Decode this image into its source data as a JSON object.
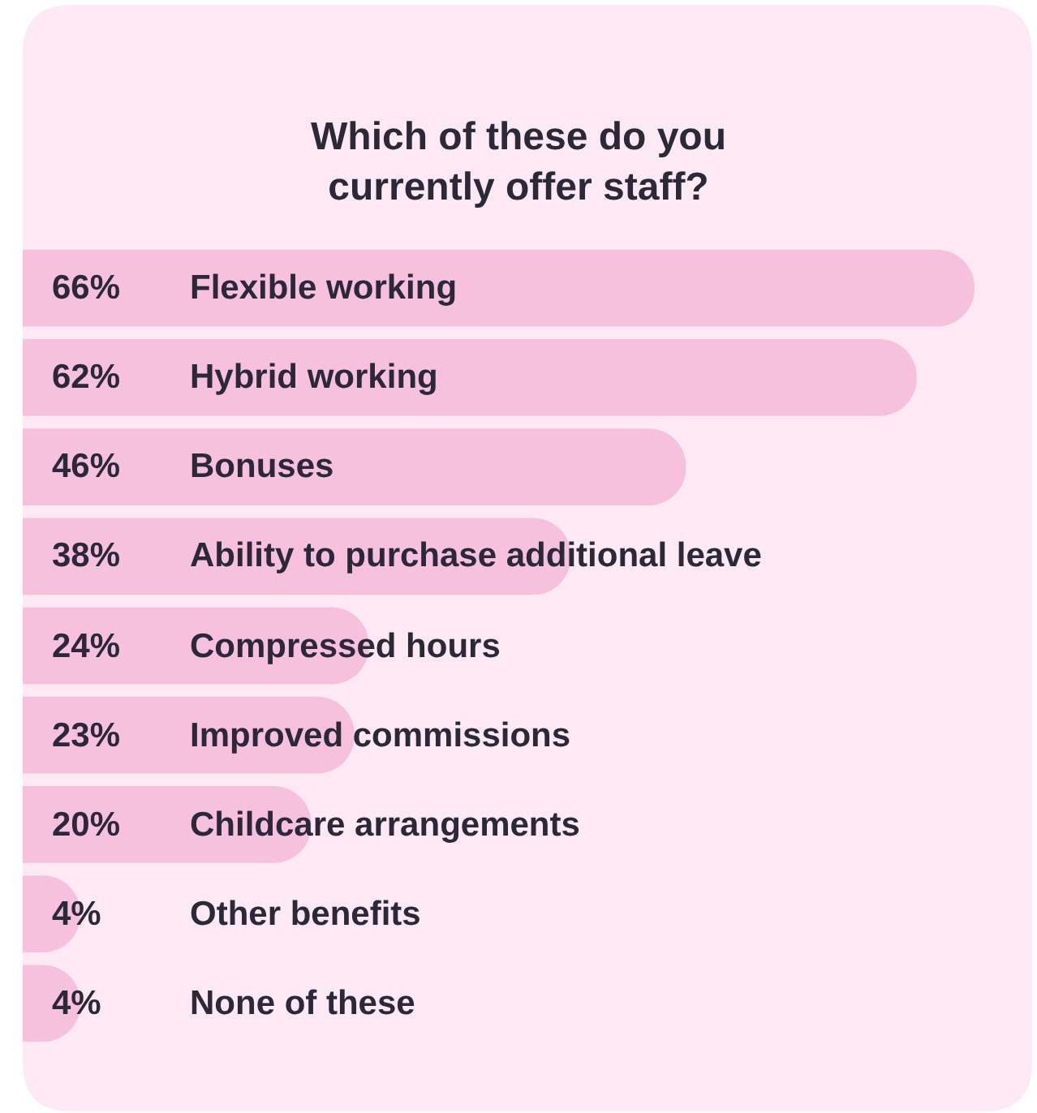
{
  "chart_data": {
    "type": "bar",
    "orientation": "horizontal",
    "title": "Which of these do you\ncurrently offer staff?",
    "categories": [
      "Flexible working",
      "Hybrid working",
      "Bonuses",
      "Ability to purchase additional leave",
      "Compressed hours",
      "Improved commissions",
      "Childcare arrangements",
      "Other benefits",
      "None of these"
    ],
    "values": [
      66,
      62,
      46,
      38,
      24,
      23,
      20,
      4,
      4
    ],
    "value_labels": [
      "66%",
      "62%",
      "46%",
      "38%",
      "24%",
      "23%",
      "20%",
      "4%",
      "4%"
    ],
    "color": "#f7c1de",
    "xlim": [
      0,
      70
    ],
    "tick_labels": false,
    "grid": false,
    "legend": false
  }
}
